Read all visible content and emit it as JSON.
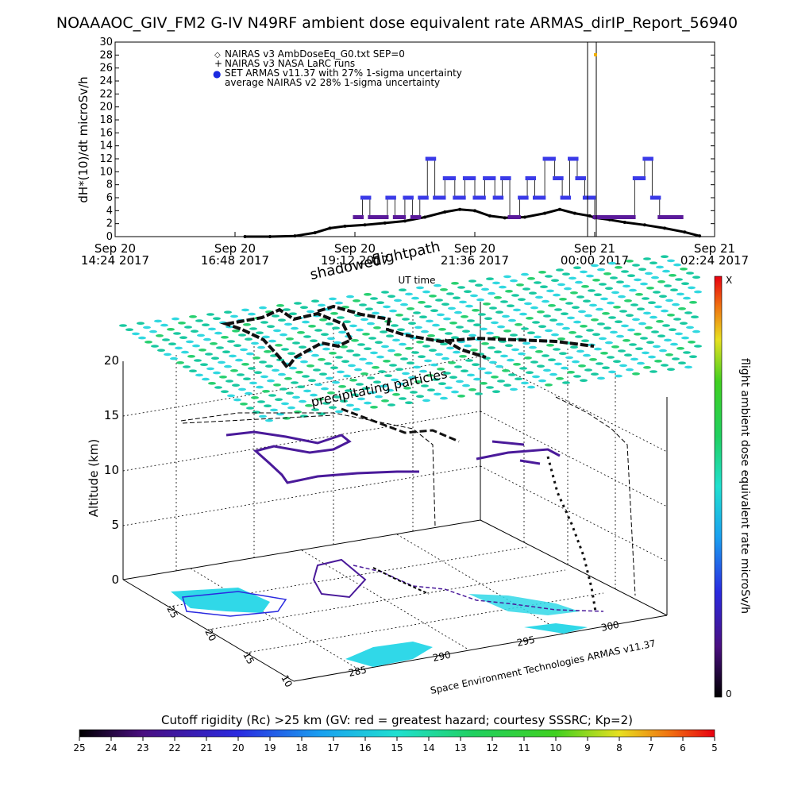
{
  "title": "NOAAAOC_GIV_FM2 G-IV   N49RF  ambient dose equivalent rate ARMAS_dirIP_Report_56940",
  "chart_data": [
    {
      "type": "scatter",
      "ylabel": "dH*(10)/dt microSv/h",
      "xlabel": "UT time",
      "ylim": [
        0,
        30
      ],
      "yticks": [
        "0",
        "2",
        "4",
        "6",
        "8",
        "10",
        "12",
        "14",
        "16",
        "18",
        "20",
        "22",
        "24",
        "26",
        "28",
        "30"
      ],
      "xticks": [
        {
          "l1": "Sep 20",
          "l2": "14:24 2017"
        },
        {
          "l1": "Sep 20",
          "l2": "16:48 2017"
        },
        {
          "l1": "Sep 20",
          "l2": "19:12 2017"
        },
        {
          "l1": "Sep 20",
          "l2": "21:36 2017"
        },
        {
          "l1": "Sep 21",
          "l2": "00:00 2017"
        },
        {
          "l1": "Sep 21",
          "l2": "02:24 2017"
        }
      ],
      "legend": [
        {
          "symbol": "◇",
          "label": "NAIRAS v3 AmbDoseEq_G0.txt SEP=0"
        },
        {
          "symbol": "+",
          "label": "NAIRAS v3 NASA LaRC runs"
        },
        {
          "symbol": "●",
          "label": "SET ARMAS v11.37 with 27% 1-sigma uncertainty"
        },
        {
          "symbol": "",
          "label": "average NAIRAS v2 28% 1-sigma uncertainty"
        }
      ],
      "nairas_v3": {
        "time_h": [
          17.0,
          17.5,
          18.0,
          18.4,
          18.7,
          19.0,
          19.4,
          19.8,
          20.2,
          20.6,
          21.0,
          21.3,
          21.6,
          21.9,
          22.2,
          22.6,
          23.0,
          23.3,
          23.6,
          23.9,
          24.0,
          24.3,
          24.6,
          25.0,
          25.4,
          25.8,
          26.1
        ],
        "rate": [
          0.0,
          0.0,
          0.1,
          0.6,
          1.3,
          1.6,
          1.8,
          2.1,
          2.4,
          3.0,
          3.8,
          4.2,
          4.0,
          3.2,
          2.9,
          3.0,
          3.6,
          4.2,
          3.6,
          3.2,
          2.9,
          2.6,
          2.2,
          1.8,
          1.3,
          0.7,
          0.1
        ]
      },
      "armas": {
        "time_h": [
          19.2,
          19.35,
          19.5,
          19.7,
          19.85,
          20.0,
          20.2,
          20.35,
          20.5,
          20.65,
          20.8,
          21.0,
          21.2,
          21.4,
          21.6,
          21.8,
          22.0,
          22.15,
          22.3,
          22.5,
          22.65,
          22.8,
          23.0,
          23.2,
          23.35,
          23.5,
          23.65,
          23.8,
          24.0,
          24.2,
          24.4,
          24.6,
          24.8,
          25.0,
          25.15,
          25.3,
          25.6
        ],
        "rate": [
          3,
          6,
          3,
          3,
          6,
          3,
          6,
          3,
          6,
          12,
          6,
          9,
          6,
          9,
          6,
          9,
          6,
          9,
          3,
          6,
          9,
          6,
          12,
          9,
          6,
          12,
          9,
          6,
          3,
          3,
          3,
          3,
          9,
          12,
          6,
          3,
          3
        ]
      },
      "color_scale_label": "flight ambient dose equivalent rate microSv/h",
      "color_scale_min": "0",
      "color_scale_max": "X"
    },
    {
      "type": "scatter",
      "subtype": "3d-surface",
      "zlabel": "Altitude (km)",
      "zticks": [
        "0",
        "5",
        "10",
        "15",
        "20"
      ],
      "lat_ticks": [
        "25",
        "20",
        "15",
        "10"
      ],
      "lon_ticks": [
        "285",
        "290",
        "295",
        "300"
      ],
      "annotation_shadow": "shadowed",
      "annotation_flightpath": "flightpath",
      "annotation_particles": "precipitating particles",
      "credit": "Space Environment Technologies ARMAS v11.37"
    }
  ],
  "cutoff_bar": {
    "label": "Cutoff rigidity (Rc) >25 km (GV: red = greatest hazard; courtesy SSSRC; Kp=2)",
    "ticks": [
      "25",
      "24",
      "23",
      "22",
      "21",
      "20",
      "19",
      "18",
      "17",
      "16",
      "15",
      "14",
      "13",
      "12",
      "11",
      "10",
      "9",
      "8",
      "7",
      "6",
      "5"
    ]
  },
  "colors": {
    "armas": "#3a3ae8",
    "armas_low": "#5a1a9a",
    "neon": "#18c8a0",
    "surface_cyan": "#30d8e8"
  }
}
